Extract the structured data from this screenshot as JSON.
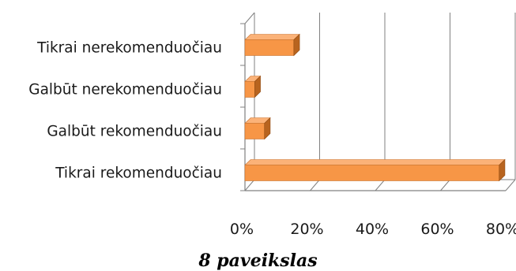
{
  "chart_data": {
    "type": "bar",
    "orientation": "horizontal",
    "style": "3d",
    "categories": [
      "Tikrai nerekomenduočiau",
      "Galbūt nerekomenduočiau",
      "Galbūt rekomenduočiau",
      "Tikrai rekomenduočiau"
    ],
    "values": [
      15,
      3,
      6,
      78
    ],
    "unit": "%",
    "xlim": [
      0,
      80
    ],
    "x_ticks": [
      "0%",
      "20%",
      "40%",
      "60%",
      "80%"
    ],
    "grid": true,
    "legend": false,
    "colors": {
      "bar": "#f79646",
      "bar_top": "#fbb278",
      "bar_side": "#b8641f",
      "grid": "#808080"
    }
  },
  "caption": "8 paveikslas"
}
